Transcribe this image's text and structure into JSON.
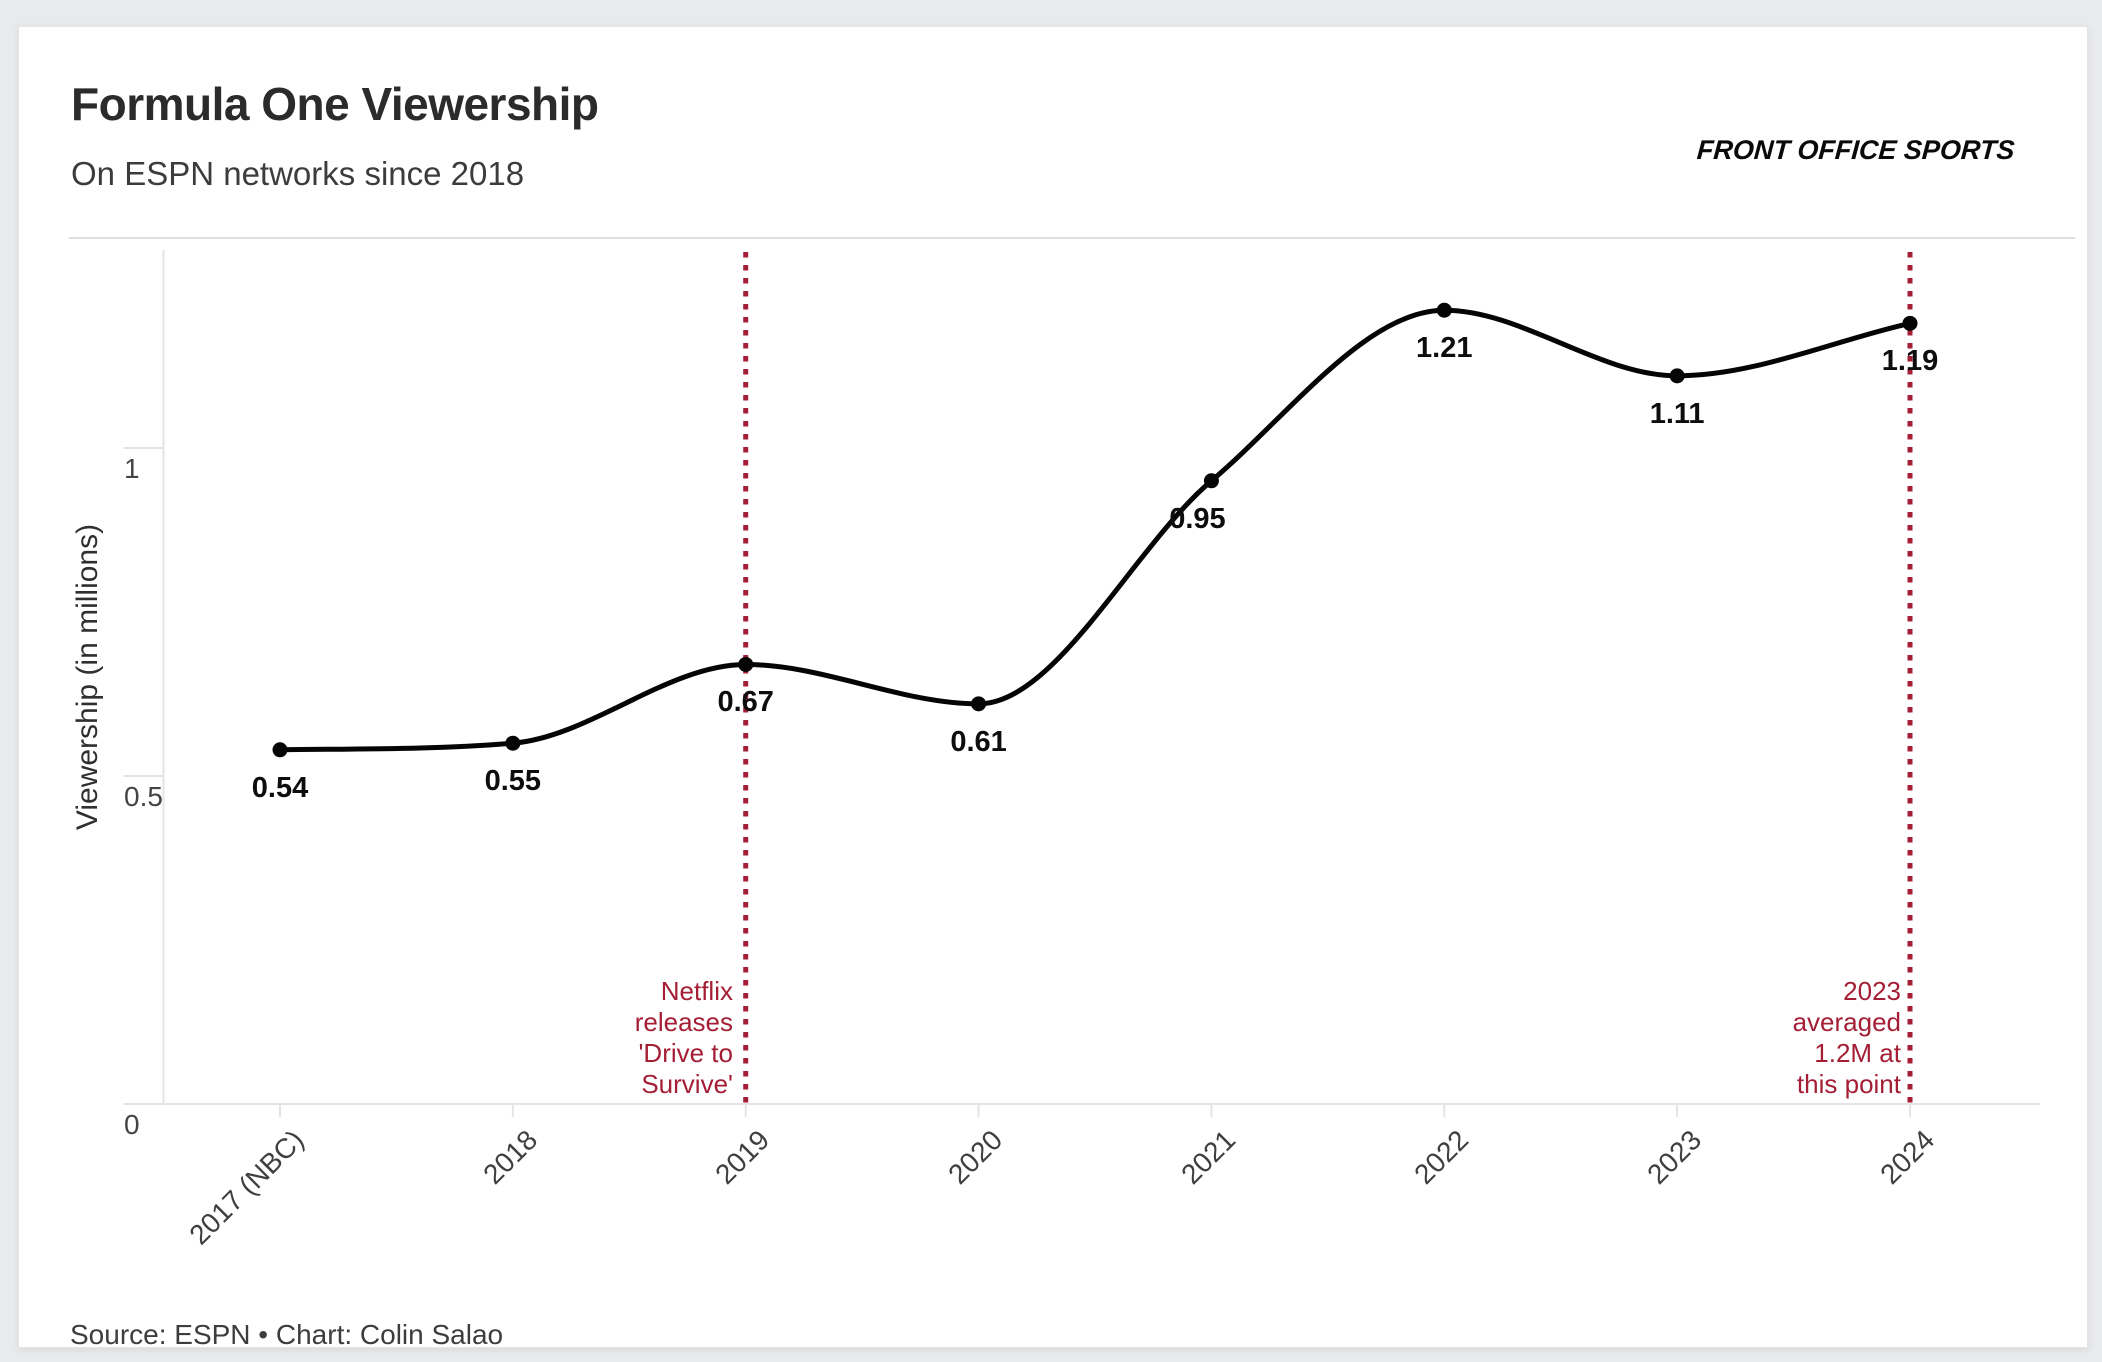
{
  "header": {
    "title": "Formula One Viewership",
    "subtitle": "On ESPN networks since 2018",
    "brand": "FRONT OFFICE SPORTS"
  },
  "footer": {
    "source": "Source: ESPN • Chart: Colin Salao"
  },
  "chart_data": {
    "type": "line",
    "title": "Formula One Viewership",
    "subtitle": "On ESPN networks since 2018",
    "categories": [
      "2017 (NBC)",
      "2018",
      "2019",
      "2020",
      "2021",
      "2022",
      "2023",
      "2024"
    ],
    "values": [
      0.54,
      0.55,
      0.67,
      0.61,
      0.95,
      1.21,
      1.11,
      1.19
    ],
    "value_labels": [
      "0.54",
      "0.55",
      "0.67",
      "0.61",
      "0.95",
      "1.21",
      "1.11",
      "1.19"
    ],
    "xlabel": "",
    "ylabel": "Viewership (in millions)",
    "yticks": [
      0,
      0.5,
      1
    ],
    "ylim": [
      0,
      1.3
    ],
    "grid": false,
    "legend": false,
    "line_color": "#050505",
    "point_color": "#050505",
    "event_color": "#a41e35",
    "axis_color": "#e4e4e6",
    "events": [
      {
        "year": "2019",
        "label": "Netflix\nreleases\n'Drive to\nSurvive'"
      },
      {
        "year": "2024",
        "label": "2023\naveraged\n1.2M at\nthis point"
      }
    ]
  }
}
